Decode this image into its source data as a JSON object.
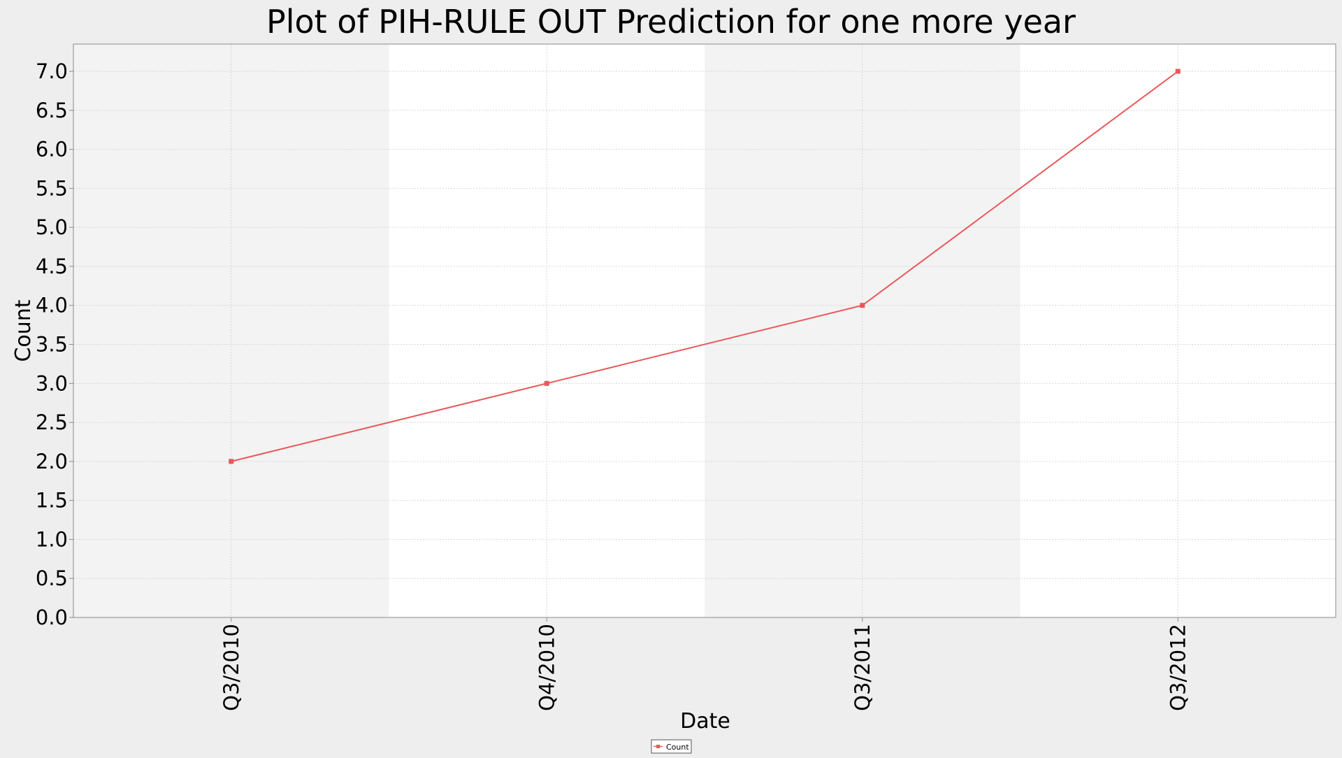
{
  "chart_data": {
    "type": "line",
    "title": "Plot of PIH-RULE OUT Prediction for one more year",
    "xlabel": "Date",
    "ylabel": "Count",
    "categories": [
      "Q3/2010",
      "Q4/2010",
      "Q3/2011",
      "Q3/2012"
    ],
    "series": [
      {
        "name": "Count",
        "values": [
          2.0,
          3.0,
          4.0,
          7.0
        ],
        "color": "#e8585a"
      }
    ],
    "ylim": [
      0.0,
      7.0
    ],
    "yticks": [
      "0.0",
      "0.5",
      "1.0",
      "1.5",
      "2.0",
      "2.5",
      "3.0",
      "3.5",
      "4.0",
      "4.5",
      "5.0",
      "5.5",
      "6.0",
      "6.5",
      "7.0"
    ],
    "grid": true,
    "alternating_bands": true,
    "band_colors": [
      "#f3f3f3",
      "#ffffff"
    ],
    "legend_position": "bottom-center"
  }
}
